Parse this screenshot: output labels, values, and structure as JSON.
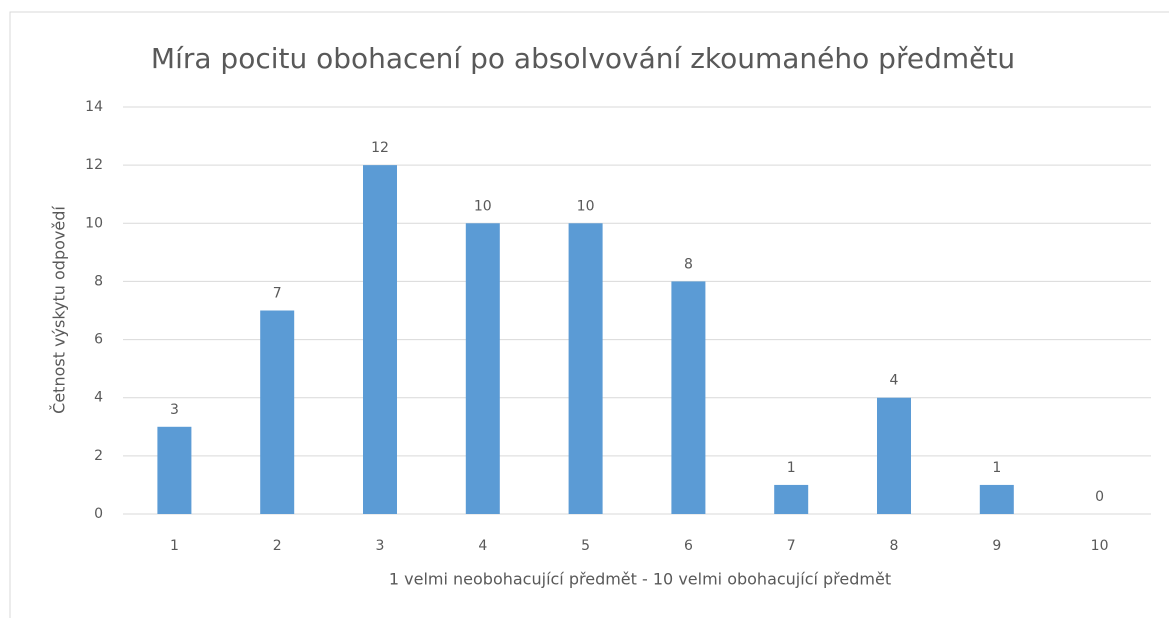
{
  "chart_data": {
    "type": "bar",
    "title": "Míra pocitu obohacení po absolvování zkoumaného předmětu",
    "xlabel": "1 velmi neobohacující předmět  - 10 velmi obohacující předmět",
    "ylabel": "Četnost výskytu odpovědí",
    "categories": [
      "1",
      "2",
      "3",
      "4",
      "5",
      "6",
      "7",
      "8",
      "9",
      "10"
    ],
    "values": [
      3,
      7,
      12,
      10,
      10,
      8,
      1,
      4,
      1,
      0
    ],
    "color": "#5b9bd5",
    "ylim": [
      0,
      14
    ],
    "yticks": [
      0,
      2,
      4,
      6,
      8,
      10,
      12,
      14
    ],
    "grid": true
  }
}
